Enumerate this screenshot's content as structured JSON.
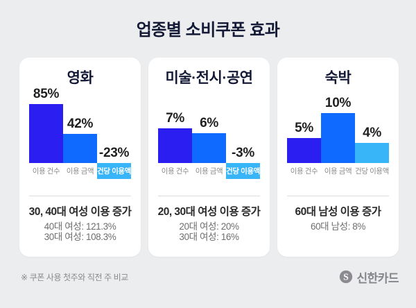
{
  "page": {
    "title": "업종별 소비쿠폰 효과",
    "footnote": "※ 쿠폰 사용 첫주와 직전 주 비교",
    "brand": "신한카드"
  },
  "colors": {
    "page_bg": "#ebedee",
    "card_bg": "#ffffff",
    "title_text": "#141a36",
    "bars": [
      "#2a1ff0",
      "#0f6bff",
      "#38b4f8"
    ],
    "highlight_label_bg": "#38b4f8",
    "highlight_label_text": "#ffffff",
    "category_text": "#8a8a8a",
    "value_text": "#1f1f1f",
    "footer_text": "#8a8a8a"
  },
  "chart_data": [
    {
      "type": "bar",
      "title": "영화",
      "categories": [
        "이용 건수",
        "이용 금액",
        "건당 이용액"
      ],
      "values": [
        85,
        42,
        -23
      ],
      "value_labels": [
        "85%",
        "42%",
        "-23%"
      ],
      "unit": "%",
      "negative_category_highlighted": true,
      "summary_title": "30, 40대 여성 이용 증가",
      "summary_lines": [
        "40대 여성: 121.3%",
        "30대 여성: 108.3%"
      ]
    },
    {
      "type": "bar",
      "title": "미술·전시·공연",
      "categories": [
        "이용 건수",
        "이용 금액",
        "건당 이용액"
      ],
      "values": [
        7,
        6,
        -3
      ],
      "value_labels": [
        "7%",
        "6%",
        "-3%"
      ],
      "unit": "%",
      "negative_category_highlighted": true,
      "summary_title": "20, 30대 여성 이용 증가",
      "summary_lines": [
        "20대 여성: 20%",
        "30대 여성: 16%"
      ]
    },
    {
      "type": "bar",
      "title": "숙박",
      "categories": [
        "이용 건수",
        "이용 금액",
        "건당 이용액"
      ],
      "values": [
        5,
        10,
        4
      ],
      "value_labels": [
        "5%",
        "10%",
        "4%"
      ],
      "unit": "%",
      "negative_category_highlighted": false,
      "summary_title": "60대 남성 이용 증가",
      "summary_lines": [
        "60대 남성: 8%"
      ]
    }
  ]
}
